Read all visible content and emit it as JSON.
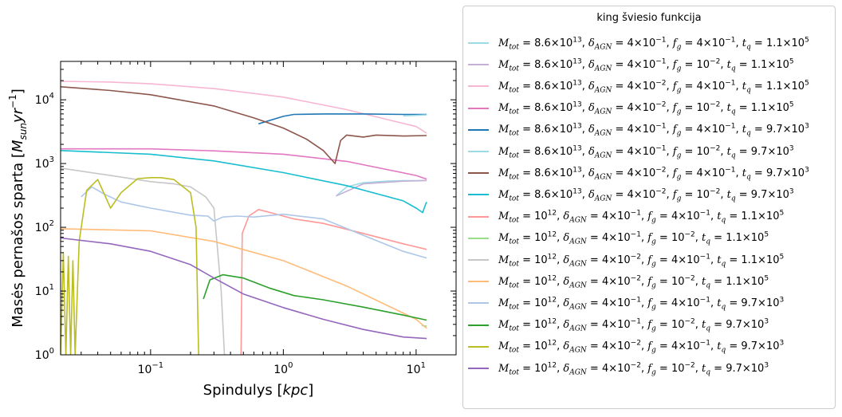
{
  "chart_data": {
    "type": "line",
    "title": "",
    "xlabel": "Spindulys [kpc]",
    "ylabel": "Masės pernašos sparta [M_sun yr^-1]",
    "xscale": "log",
    "yscale": "log",
    "xlim": [
      0.021,
      20
    ],
    "ylim": [
      1,
      40000
    ],
    "x_ticks": [
      "10^-1",
      "10^0",
      "10^1"
    ],
    "y_ticks": [
      "10^0",
      "10^1",
      "10^2",
      "10^3",
      "10^4"
    ],
    "grid": false,
    "legend_placement": "outside-right",
    "legend_title": "king šviesio funkcija",
    "series": [
      {
        "name": "M_tot = 8.6×10^13, δ_AGN = 4×10^-1, f_g = 4×10^-1, t_q = 1.1×10^5",
        "color": "#9edae5",
        "points": [
          [
            2.5,
            310
          ],
          [
            3,
            430
          ],
          [
            4,
            500
          ],
          [
            6,
            530
          ],
          [
            8,
            540
          ],
          [
            10,
            540
          ],
          [
            12,
            545
          ]
        ]
      },
      {
        "name": "M_tot = 8.6×10^13, δ_AGN = 4×10^-1, f_g = 10^-2, t_q = 1.1×10^5",
        "color": "#c5b0d5",
        "points": [
          [
            2.5,
            310
          ],
          [
            4,
            480
          ],
          [
            8,
            530
          ],
          [
            12,
            540
          ]
        ]
      },
      {
        "name": "M_tot = 8.6×10^13, δ_AGN = 4×10^-2, f_g = 4×10^-1, t_q = 1.1×10^5",
        "color": "#f7b6d2",
        "points": [
          [
            0.021,
            19500
          ],
          [
            0.05,
            19000
          ],
          [
            0.1,
            17800
          ],
          [
            0.3,
            15000
          ],
          [
            1,
            11000
          ],
          [
            3,
            7000
          ],
          [
            10,
            3800
          ],
          [
            12,
            3000
          ]
        ]
      },
      {
        "name": "M_tot = 8.6×10^13, δ_AGN = 4×10^-2, f_g = 10^-2, t_q = 1.1×10^5",
        "color": "#e377c2",
        "points": [
          [
            0.021,
            1700
          ],
          [
            0.1,
            1700
          ],
          [
            0.3,
            1580
          ],
          [
            1,
            1400
          ],
          [
            3,
            1080
          ],
          [
            10,
            650
          ],
          [
            12,
            570
          ]
        ]
      },
      {
        "name": "M_tot = 8.6×10^13, δ_AGN = 4×10^-1, f_g = 4×10^-1, t_q = 9.7×10^3",
        "color": "#1f77b4",
        "points": [
          [
            0.65,
            4200
          ],
          [
            1,
            5500
          ],
          [
            1.2,
            5900
          ],
          [
            2,
            6000
          ],
          [
            4,
            6000
          ],
          [
            8,
            5900
          ],
          [
            12,
            5900
          ]
        ]
      },
      {
        "name": "M_tot = 8.6×10^13, δ_AGN = 4×10^-1, f_g = 10^-2, t_q = 9.7×10^3",
        "color": "#9edae5",
        "points": [
          [
            8,
            5600
          ],
          [
            10,
            5700
          ],
          [
            12,
            5800
          ]
        ]
      },
      {
        "name": "M_tot = 8.6×10^13, δ_AGN = 4×10^-2, f_g = 4×10^-1, t_q = 9.7×10^3",
        "color": "#8c564b",
        "points": [
          [
            0.021,
            16000
          ],
          [
            0.05,
            14000
          ],
          [
            0.1,
            12000
          ],
          [
            0.3,
            8000
          ],
          [
            0.6,
            5200
          ],
          [
            1,
            3600
          ],
          [
            1.5,
            2400
          ],
          [
            2,
            1600
          ],
          [
            2.45,
            1000
          ],
          [
            2.7,
            2300
          ],
          [
            3,
            2800
          ],
          [
            4,
            2600
          ],
          [
            5,
            2800
          ],
          [
            8,
            2700
          ],
          [
            12,
            2750
          ]
        ]
      },
      {
        "name": "M_tot = 8.6×10^13, δ_AGN = 4×10^-2, f_g = 10^-2, t_q = 9.7×10^3",
        "color": "#17becf",
        "points": [
          [
            0.021,
            1600
          ],
          [
            0.1,
            1400
          ],
          [
            0.3,
            1100
          ],
          [
            1,
            720
          ],
          [
            3,
            450
          ],
          [
            8,
            260
          ],
          [
            10,
            200
          ],
          [
            11.2,
            170
          ],
          [
            11.8,
            230
          ],
          [
            12,
            250
          ]
        ]
      },
      {
        "name": "M_tot = 10^12, δ_AGN = 4×10^-1, f_g = 4×10^-1, t_q = 1.1×10^5",
        "color": "#ff9896",
        "points": [
          [
            0.48,
            1
          ],
          [
            0.49,
            80
          ],
          [
            0.55,
            150
          ],
          [
            0.65,
            190
          ],
          [
            0.8,
            170
          ],
          [
            1.2,
            135
          ],
          [
            2,
            115
          ],
          [
            4,
            80
          ],
          [
            8,
            55
          ],
          [
            12,
            45
          ]
        ]
      },
      {
        "name": "M_tot = 10^12, δ_AGN = 4×10^-1, f_g = 10^-2, t_q = 1.1×10^5",
        "color": "#98df8a",
        "points": [
          [
            11,
            2.9
          ],
          [
            12,
            2.8
          ]
        ]
      },
      {
        "name": "M_tot = 10^12, δ_AGN = 4×10^-2, f_g = 4×10^-1, t_q = 1.1×10^5",
        "color": "#c7c7c7",
        "points": [
          [
            0.021,
            850
          ],
          [
            0.05,
            650
          ],
          [
            0.1,
            520
          ],
          [
            0.15,
            480
          ],
          [
            0.2,
            430
          ],
          [
            0.26,
            300
          ],
          [
            0.3,
            200
          ],
          [
            0.34,
            10
          ],
          [
            0.36,
            1
          ]
        ]
      },
      {
        "name": "M_tot = 10^12, δ_AGN = 4×10^-2, f_g = 10^-2, t_q = 1.1×10^5",
        "color": "#ffbb78",
        "points": [
          [
            0.021,
            95
          ],
          [
            0.1,
            88
          ],
          [
            0.3,
            60
          ],
          [
            1,
            30
          ],
          [
            3,
            12
          ],
          [
            10,
            3.6
          ],
          [
            12,
            2.6
          ]
        ]
      },
      {
        "name": "M_tot = 10^12, δ_AGN = 4×10^-1, f_g = 4×10^-1, t_q = 9.7×10^3",
        "color": "#aec7e8",
        "points": [
          [
            0.03,
            300
          ],
          [
            0.036,
            430
          ],
          [
            0.045,
            330
          ],
          [
            0.06,
            250
          ],
          [
            0.08,
            220
          ],
          [
            0.1,
            200
          ],
          [
            0.2,
            155
          ],
          [
            0.27,
            150
          ],
          [
            0.3,
            125
          ],
          [
            0.35,
            145
          ],
          [
            0.45,
            150
          ],
          [
            0.6,
            145
          ],
          [
            1,
            160
          ],
          [
            2,
            135
          ],
          [
            4,
            75
          ],
          [
            8,
            42
          ],
          [
            12,
            33
          ]
        ]
      },
      {
        "name": "M_tot = 10^12, δ_AGN = 4×10^-1, f_g = 10^-2, t_q = 9.7×10^3",
        "color": "#2ca02c",
        "points": [
          [
            0.25,
            7.5
          ],
          [
            0.28,
            15
          ],
          [
            0.35,
            18
          ],
          [
            0.5,
            16
          ],
          [
            0.8,
            11
          ],
          [
            1.2,
            8.5
          ],
          [
            2,
            7.3
          ],
          [
            4,
            5.6
          ],
          [
            8,
            4.2
          ],
          [
            12,
            3.5
          ]
        ]
      },
      {
        "name": "M_tot = 10^12, δ_AGN = 4×10^-2, f_g = 4×10^-1, t_q = 9.7×10^3",
        "color": "#bcbd22",
        "points": [
          [
            0.021,
            1
          ],
          [
            0.022,
            40
          ],
          [
            0.023,
            1
          ],
          [
            0.024,
            35
          ],
          [
            0.025,
            1
          ],
          [
            0.026,
            30
          ],
          [
            0.027,
            1
          ],
          [
            0.029,
            60
          ],
          [
            0.033,
            380
          ],
          [
            0.04,
            560
          ],
          [
            0.05,
            200
          ],
          [
            0.06,
            350
          ],
          [
            0.08,
            580
          ],
          [
            0.1,
            600
          ],
          [
            0.12,
            600
          ],
          [
            0.15,
            560
          ],
          [
            0.2,
            350
          ],
          [
            0.22,
            100
          ],
          [
            0.23,
            1
          ]
        ]
      },
      {
        "name": "M_tot = 10^12, δ_AGN = 4×10^-2, f_g = 10^-2, t_q = 9.7×10^3",
        "color": "#9467bd",
        "points": [
          [
            0.021,
            68
          ],
          [
            0.05,
            55
          ],
          [
            0.1,
            42
          ],
          [
            0.2,
            26
          ],
          [
            0.3,
            16
          ],
          [
            0.5,
            9
          ],
          [
            1,
            5.5
          ],
          [
            2,
            3.6
          ],
          [
            4,
            2.5
          ],
          [
            8,
            1.9
          ],
          [
            12,
            1.8
          ]
        ]
      }
    ]
  }
}
